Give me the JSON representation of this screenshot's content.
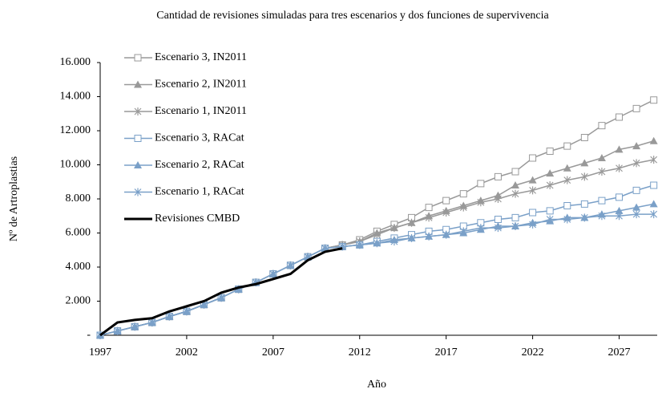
{
  "chart_data": {
    "type": "line",
    "title": "Cantidad de revisiones simuladas para tres escenarios y dos funciones de supervivencia",
    "x_label": "Año",
    "y_label": "Nº de Artroplastias",
    "x": [
      1997,
      1998,
      1999,
      2000,
      2001,
      2002,
      2003,
      2004,
      2005,
      2006,
      2007,
      2008,
      2009,
      2010,
      2011,
      2012,
      2013,
      2014,
      2015,
      2016,
      2017,
      2018,
      2019,
      2020,
      2021,
      2022,
      2023,
      2024,
      2025,
      2026,
      2027,
      2028,
      2029
    ],
    "xlim": [
      1997,
      2029.2
    ],
    "xticks": [
      1997,
      2002,
      2007,
      2012,
      2017,
      2022,
      2027
    ],
    "ylim": [
      0,
      16000
    ],
    "yticks": [
      {
        "value": 0,
        "label": "-"
      },
      {
        "value": 2000,
        "label": "2.000"
      },
      {
        "value": 4000,
        "label": "4.000"
      },
      {
        "value": 6000,
        "label": "6.000"
      },
      {
        "value": 8000,
        "label": "8.000"
      },
      {
        "value": 10000,
        "label": "10.000"
      },
      {
        "value": 12000,
        "label": "12.000"
      },
      {
        "value": 14000,
        "label": "14.000"
      },
      {
        "value": 16000,
        "label": "16.000"
      }
    ],
    "grid": false,
    "legend": "upper left",
    "series": [
      {
        "name": "Escenario 3, IN2011",
        "color": "#999999",
        "marker": "square",
        "values": [
          0,
          250,
          500,
          750,
          1100,
          1400,
          1800,
          2200,
          2700,
          3100,
          3600,
          4100,
          4600,
          5100,
          5300,
          5600,
          6100,
          6500,
          6900,
          7500,
          7900,
          8300,
          8900,
          9300,
          9600,
          10400,
          10800,
          11100,
          11600,
          12300,
          12800,
          13300,
          13800
        ]
      },
      {
        "name": "Escenario 2, IN2011",
        "color": "#999999",
        "marker": "triangle",
        "values": [
          0,
          250,
          500,
          750,
          1100,
          1400,
          1800,
          2200,
          2700,
          3100,
          3600,
          4100,
          4600,
          5100,
          5300,
          5500,
          6000,
          6300,
          6600,
          7000,
          7300,
          7600,
          7900,
          8200,
          8800,
          9100,
          9500,
          9800,
          10100,
          10400,
          10900,
          11100,
          11400
        ]
      },
      {
        "name": "Escenario 1, IN2011",
        "color": "#999999",
        "marker": "star",
        "values": [
          0,
          250,
          500,
          750,
          1100,
          1400,
          1800,
          2200,
          2700,
          3100,
          3600,
          4100,
          4600,
          5100,
          5300,
          5500,
          5900,
          6300,
          6600,
          6900,
          7200,
          7500,
          7800,
          8000,
          8300,
          8500,
          8800,
          9100,
          9300,
          9600,
          9800,
          10100,
          10300
        ]
      },
      {
        "name": "Escenario 3, RACat",
        "color": "#7aa0c8",
        "marker": "square",
        "values": [
          0,
          250,
          500,
          750,
          1100,
          1400,
          1800,
          2200,
          2700,
          3100,
          3600,
          4100,
          4600,
          5100,
          5200,
          5300,
          5500,
          5700,
          5900,
          6100,
          6200,
          6400,
          6600,
          6800,
          6900,
          7200,
          7300,
          7600,
          7700,
          7900,
          8100,
          8500,
          8800
        ]
      },
      {
        "name": "Escenario 2, RACat",
        "color": "#7aa0c8",
        "marker": "triangle",
        "values": [
          0,
          250,
          500,
          750,
          1100,
          1400,
          1800,
          2200,
          2700,
          3100,
          3600,
          4100,
          4600,
          5100,
          5200,
          5300,
          5400,
          5600,
          5700,
          5800,
          5900,
          6000,
          6200,
          6400,
          6400,
          6600,
          6700,
          6900,
          6900,
          7100,
          7300,
          7500,
          7700
        ]
      },
      {
        "name": "Escenario 1, RACat",
        "color": "#7aa0c8",
        "marker": "star",
        "values": [
          0,
          250,
          500,
          750,
          1100,
          1400,
          1800,
          2200,
          2700,
          3100,
          3600,
          4100,
          4600,
          5100,
          5200,
          5300,
          5400,
          5500,
          5700,
          5800,
          5900,
          6100,
          6300,
          6300,
          6400,
          6500,
          6800,
          6800,
          6900,
          7000,
          7000,
          7100,
          7100
        ]
      },
      {
        "name": "Revisiones CMBD",
        "color": "#000000",
        "marker": "none",
        "values": [
          0,
          750,
          900,
          1000,
          1400,
          1700,
          2000,
          2500,
          2800,
          3000,
          3300,
          3600,
          4400,
          4900,
          5100,
          null,
          null,
          null,
          null,
          null,
          null,
          null,
          null,
          null,
          null,
          null,
          null,
          null,
          null,
          null,
          null,
          null,
          null
        ]
      }
    ]
  }
}
